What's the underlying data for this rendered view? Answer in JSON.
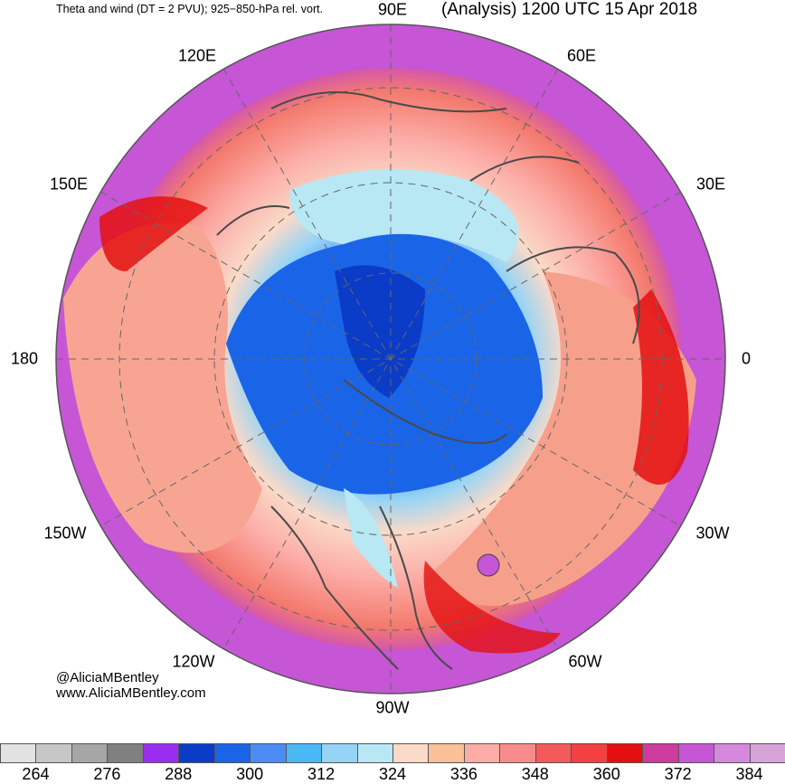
{
  "header": {
    "left_title": "Theta and wind (DT = 2 PVU); 925−850-hPa rel. vort.",
    "right_title": "(Analysis) 1200 UTC 15 Apr 2018"
  },
  "map": {
    "projection": "north-polar-stereographic",
    "longitude_labels": [
      {
        "name": "lon-90e",
        "text": "90E"
      },
      {
        "name": "lon-60e",
        "text": "60E"
      },
      {
        "name": "lon-30e",
        "text": "30E"
      },
      {
        "name": "lon-0",
        "text": "0"
      },
      {
        "name": "lon-30w",
        "text": "30W"
      },
      {
        "name": "lon-60w",
        "text": "60W"
      },
      {
        "name": "lon-90w",
        "text": "90W"
      },
      {
        "name": "lon-120w",
        "text": "120W"
      },
      {
        "name": "lon-150w",
        "text": "150W"
      },
      {
        "name": "lon-180",
        "text": "180"
      },
      {
        "name": "lon-150e",
        "text": "150E"
      },
      {
        "name": "lon-120e",
        "text": "120E"
      }
    ],
    "colors": {
      "cold_core": "#1a5ee8",
      "cool": "#8fd0f4",
      "mild": "#fcc8a8",
      "warm": "#f47a6e",
      "hot": "#e01818",
      "outer": "#c548c8",
      "coast": "#4a4a4a"
    }
  },
  "credits": {
    "handle": "@AliciaMBentley",
    "website": "www.AliciaMBentley.com"
  },
  "colorbar": {
    "colors": [
      "#e2e2e2",
      "#c6c6c6",
      "#a6a6a6",
      "#808080",
      "#9a2ef0",
      "#0a3cc8",
      "#1a64e8",
      "#4a8cf4",
      "#4ab8f4",
      "#96d4f6",
      "#b8e8f4",
      "#fadac8",
      "#fcc096",
      "#fcaca6",
      "#f88c8c",
      "#f45a5a",
      "#f44040",
      "#e41010",
      "#cc3c9c",
      "#c656d6",
      "#d688dc",
      "#d8a4d8"
    ],
    "labels": [
      "264",
      "276",
      "288",
      "300",
      "312",
      "324",
      "336",
      "348",
      "360",
      "372",
      "384"
    ]
  }
}
